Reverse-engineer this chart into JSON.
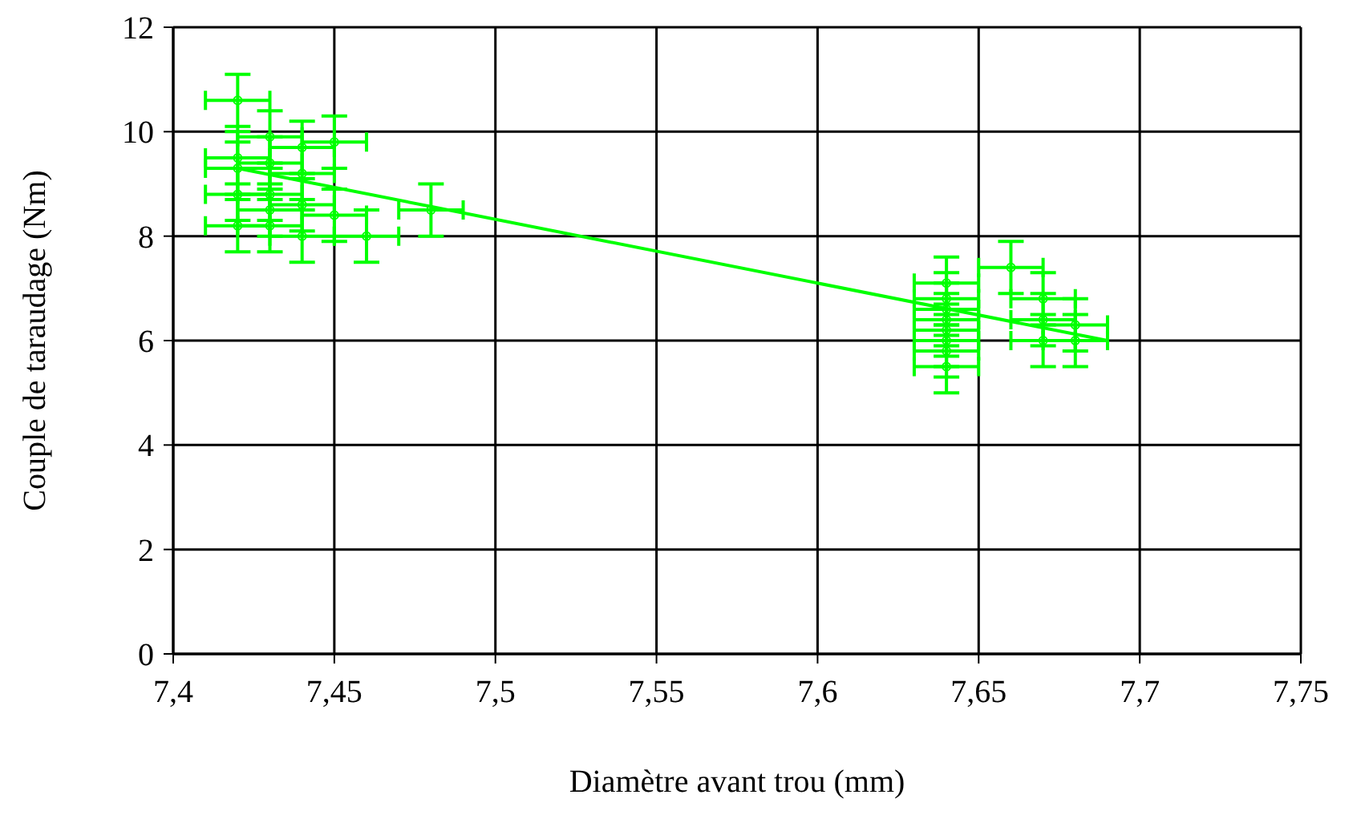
{
  "chart_data": {
    "type": "scatter",
    "xlabel": "Diamètre avant trou (mm)",
    "ylabel": "Couple de taraudage (Nm)",
    "xlim": [
      7.4,
      7.75
    ],
    "ylim": [
      0,
      12
    ],
    "xticks": [
      {
        "value": 7.4,
        "label": "7,4"
      },
      {
        "value": 7.45,
        "label": "7,45"
      },
      {
        "value": 7.5,
        "label": "7,5"
      },
      {
        "value": 7.55,
        "label": "7,55"
      },
      {
        "value": 7.6,
        "label": "7,6"
      },
      {
        "value": 7.65,
        "label": "7,65"
      },
      {
        "value": 7.7,
        "label": "7,7"
      },
      {
        "value": 7.75,
        "label": "7,75"
      }
    ],
    "yticks": [
      0,
      2,
      4,
      6,
      8,
      10,
      12
    ],
    "grid": true,
    "series": [
      {
        "marker": "circle",
        "color": "#00ff00",
        "x": [
          7.42,
          7.43,
          7.44,
          7.45,
          7.42,
          7.43,
          7.42,
          7.44,
          7.43,
          7.42,
          7.43,
          7.45,
          7.44,
          7.42,
          7.43,
          7.44,
          7.46,
          7.48,
          7.64,
          7.64,
          7.64,
          7.64,
          7.64,
          7.64,
          7.64,
          7.64,
          7.66,
          7.67,
          7.67,
          7.67,
          7.68,
          7.68
        ],
        "values": [
          10.6,
          9.9,
          9.7,
          9.8,
          9.5,
          9.4,
          9.3,
          9.2,
          8.8,
          8.8,
          8.5,
          8.4,
          8.6,
          8.2,
          8.2,
          8.0,
          8.0,
          8.5,
          7.1,
          6.8,
          6.6,
          6.4,
          6.2,
          6.0,
          5.8,
          5.5,
          7.4,
          6.8,
          6.4,
          6.0,
          6.3,
          6.0
        ],
        "errors": [
          0.5,
          0.5,
          0.5,
          0.5,
          0.5,
          0.5,
          0.5,
          0.5,
          0.5,
          0.5,
          0.5,
          0.5,
          0.5,
          0.5,
          0.5,
          0.5,
          0.5,
          0.5,
          0.5,
          0.5,
          0.5,
          0.5,
          0.5,
          0.5,
          0.5,
          0.5,
          0.5,
          0.5,
          0.5,
          0.5,
          0.5,
          0.5
        ],
        "xerrors": [
          0.01,
          0.01,
          0.01,
          0.01,
          0.01,
          0.01,
          0.01,
          0.01,
          0.01,
          0.01,
          0.01,
          0.01,
          0.01,
          0.01,
          0.01,
          0.01,
          0.01,
          0.01,
          0.01,
          0.01,
          0.01,
          0.01,
          0.01,
          0.01,
          0.01,
          0.01,
          0.01,
          0.01,
          0.01,
          0.01,
          0.01,
          0.01
        ]
      },
      {
        "type": "line",
        "color": "#00ff00",
        "x": [
          7.42,
          7.69
        ],
        "values": [
          9.3,
          6.0
        ]
      }
    ]
  }
}
